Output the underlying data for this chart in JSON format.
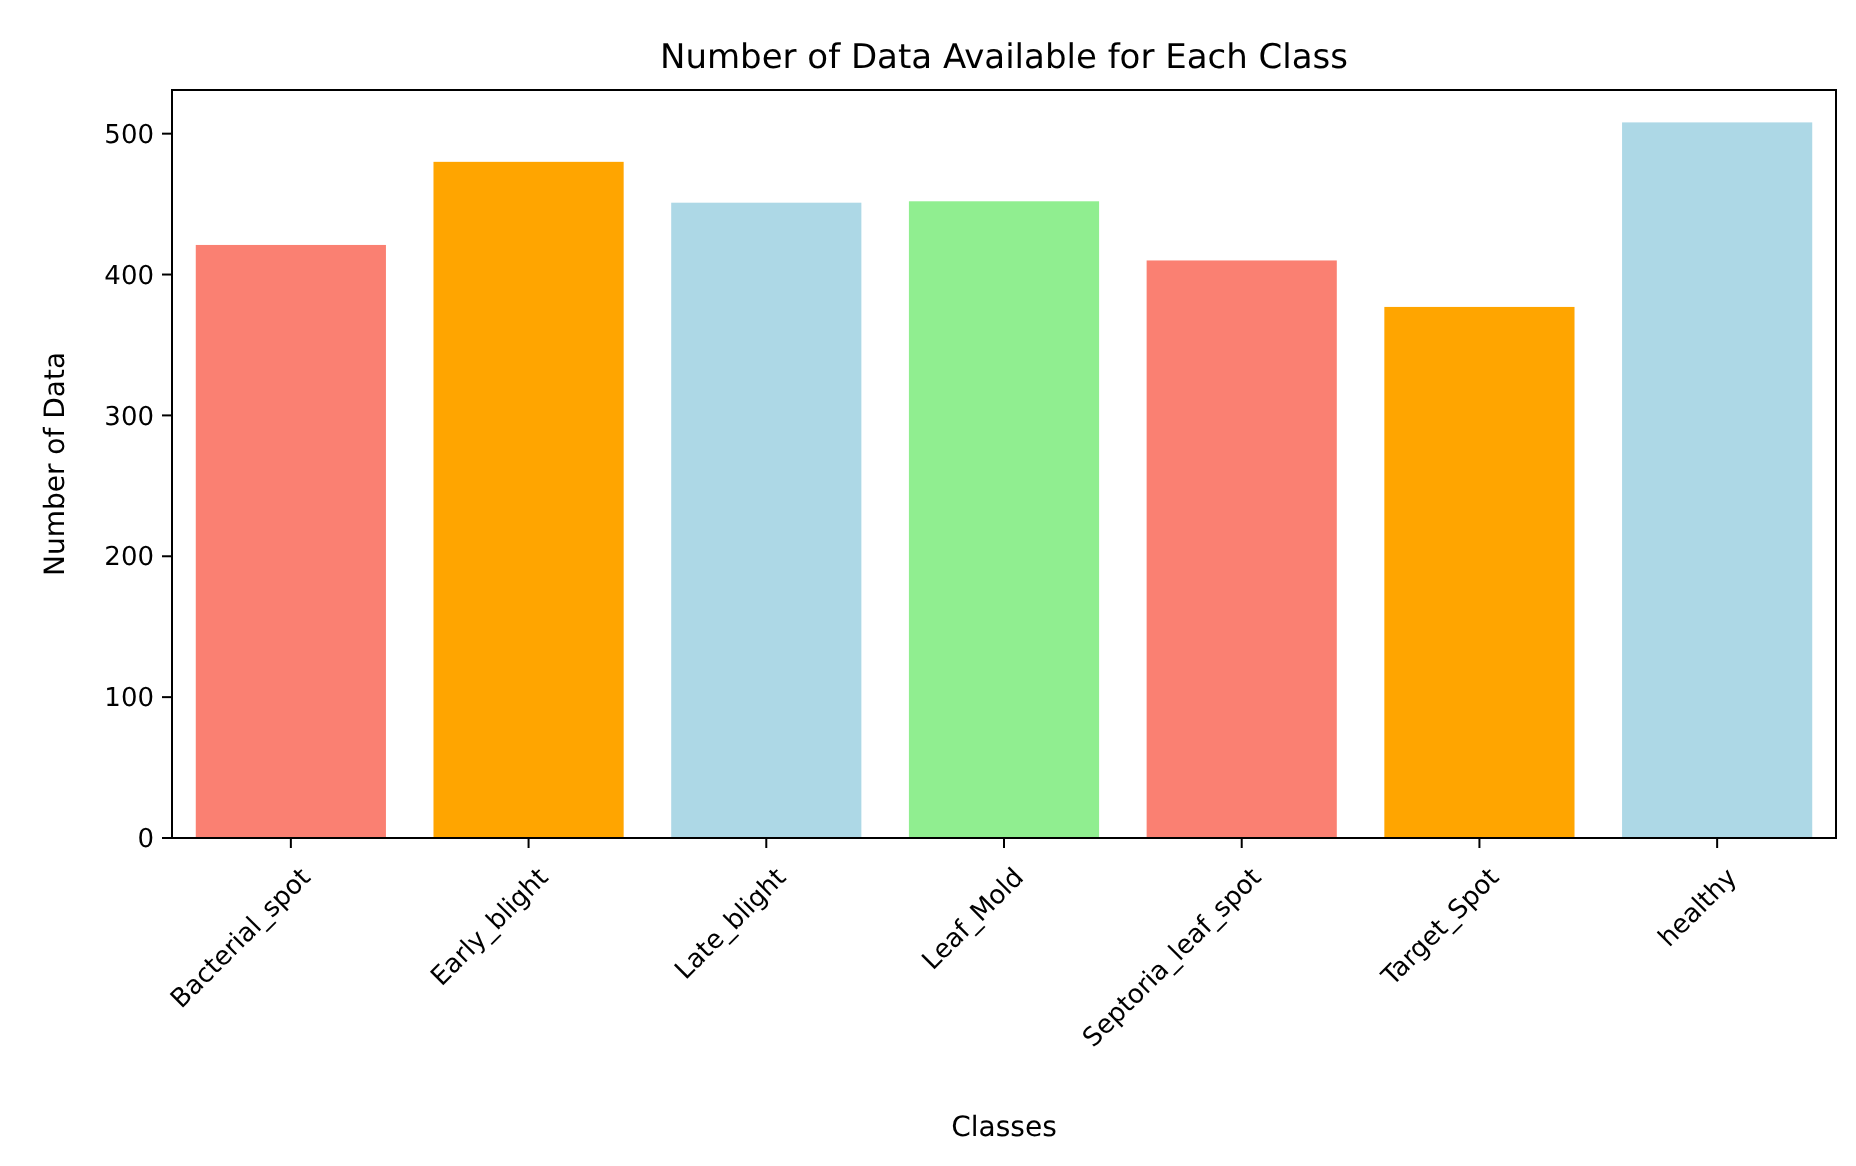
{
  "chart_data": {
    "type": "bar",
    "title": "Number of Data Available for Each Class",
    "xlabel": "Classes",
    "ylabel": "Number of Data",
    "categories": [
      "Bacterial_spot",
      "Early_blight",
      "Late_blight",
      "Leaf_Mold",
      "Septoria_leaf_spot",
      "Target_Spot",
      "healthy"
    ],
    "values": [
      421,
      480,
      451,
      452,
      410,
      377,
      508
    ],
    "colors": [
      "#fa8072",
      "#ffa500",
      "#add8e6",
      "#90ee90",
      "#fa8072",
      "#ffa500",
      "#add8e6"
    ],
    "ylim": [
      0,
      531
    ],
    "yticks": [
      0,
      100,
      200,
      300,
      400,
      500
    ]
  }
}
